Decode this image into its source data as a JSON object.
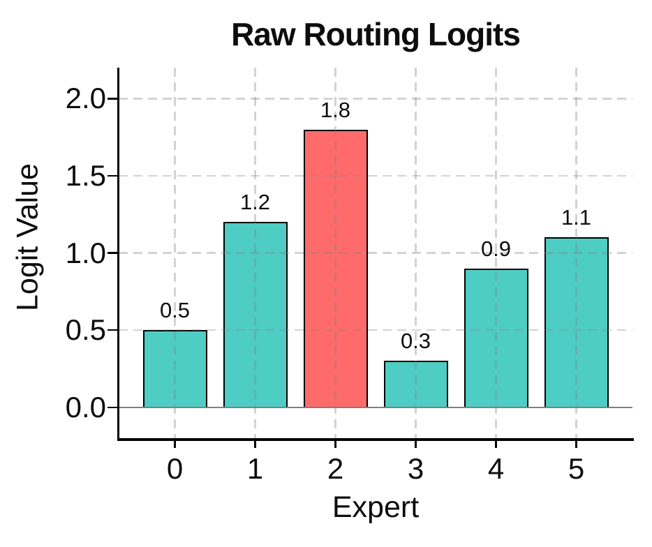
{
  "figure": {
    "title": "Raw Routing Logits"
  },
  "chart_data": {
    "type": "bar",
    "title": "Raw Routing Logits",
    "xlabel": "Expert",
    "ylabel": "Logit Value",
    "categories": [
      "0",
      "1",
      "2",
      "3",
      "4",
      "5"
    ],
    "values": [
      0.5,
      1.2,
      1.8,
      0.3,
      0.9,
      1.1
    ],
    "bar_labels": [
      "0.5",
      "1.2",
      "1.8",
      "0.3",
      "0.9",
      "1.1"
    ],
    "highlight_index": 2,
    "bar_color": "#4ECDC4",
    "highlight_color": "#FF6B6B",
    "bar_edge_color": "#000000",
    "yticks": [
      0.0,
      0.5,
      1.0,
      1.5,
      2.0
    ],
    "ytick_labels": [
      "0.0",
      "0.5",
      "1.0",
      "1.5",
      "2.0"
    ],
    "ylim": [
      -0.2,
      2.2
    ],
    "xlim": [
      -0.7,
      5.7
    ],
    "bar_width_units": 0.8,
    "grid": true,
    "grid_style": "dashed",
    "zero_line_color": "#808080",
    "legend": null
  }
}
